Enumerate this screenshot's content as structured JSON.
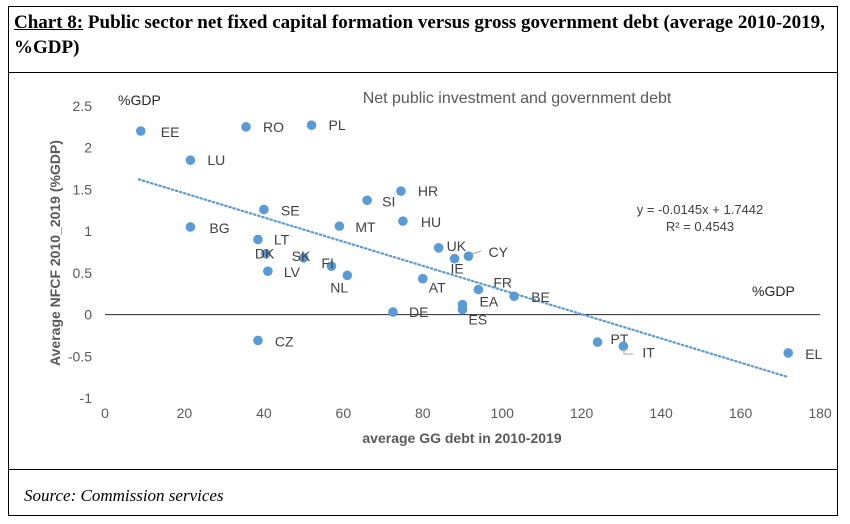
{
  "heading": {
    "label": "Chart 8:",
    "text": " Public sector net fixed capital formation versus gross government debt (average 2010-2019, %GDP)"
  },
  "source": "Source: Commission services",
  "chart_data": {
    "type": "scatter",
    "title": "Net public investment and government debt",
    "xlabel": "average GG debt in 2010-2019",
    "ylabel": "Average NFCF 2010_2019 (%GDP)",
    "y_unit_label": "%GDP",
    "x_unit_label": "%GDP",
    "xlim": [
      0,
      180
    ],
    "ylim": [
      -1,
      2.5
    ],
    "x_ticks": [
      "0",
      "20",
      "40",
      "60",
      "80",
      "100",
      "120",
      "140",
      "160",
      "180"
    ],
    "y_ticks": [
      "2.5",
      "2",
      "1.5",
      "1",
      "0.5",
      "0",
      "-0.5",
      "-1"
    ],
    "grid": false,
    "point_color": "#5b9bd5",
    "trendline": {
      "slope": -0.0145,
      "intercept": 1.7442,
      "x_range": [
        8.5,
        172
      ],
      "color": "#5b9bd5",
      "equation": "y = -0.0145x + 1.7442",
      "r2_text": "R² = 0.4543"
    },
    "points": [
      {
        "label": "EE",
        "x": 9,
        "y": 2.2
      },
      {
        "label": "RO",
        "x": 35.5,
        "y": 2.25
      },
      {
        "label": "PL",
        "x": 52,
        "y": 2.27
      },
      {
        "label": "LU",
        "x": 21.5,
        "y": 1.85
      },
      {
        "label": "HR",
        "x": 74.5,
        "y": 1.48
      },
      {
        "label": "SI",
        "x": 66,
        "y": 1.37
      },
      {
        "label": "SE",
        "x": 40,
        "y": 1.26
      },
      {
        "label": "HU",
        "x": 75,
        "y": 1.12
      },
      {
        "label": "MT",
        "x": 59,
        "y": 1.06
      },
      {
        "label": "BG",
        "x": 21.5,
        "y": 1.05
      },
      {
        "label": "LT",
        "x": 38.5,
        "y": 0.9
      },
      {
        "label": "UK",
        "x": 84,
        "y": 0.8
      },
      {
        "label": "CY",
        "x": 91.5,
        "y": 0.7
      },
      {
        "label": "DK",
        "x": 40.5,
        "y": 0.73
      },
      {
        "label": "SK",
        "x": 50,
        "y": 0.68
      },
      {
        "label": "IE",
        "x": 88,
        "y": 0.67
      },
      {
        "label": "FI",
        "x": 57,
        "y": 0.58
      },
      {
        "label": "LV",
        "x": 41,
        "y": 0.52
      },
      {
        "label": "NL",
        "x": 61,
        "y": 0.47
      },
      {
        "label": "AT",
        "x": 80,
        "y": 0.43
      },
      {
        "label": "FR",
        "x": 94,
        "y": 0.3
      },
      {
        "label": "BE",
        "x": 103,
        "y": 0.22
      },
      {
        "label": "EA",
        "x": 90,
        "y": 0.12
      },
      {
        "label": "DE",
        "x": 72.5,
        "y": 0.03
      },
      {
        "label": "ES",
        "x": 90,
        "y": 0.06
      },
      {
        "label": "CZ",
        "x": 38.5,
        "y": -0.31
      },
      {
        "label": "PT",
        "x": 124,
        "y": -0.33
      },
      {
        "label": "IT",
        "x": 130.5,
        "y": -0.38
      },
      {
        "label": "EL",
        "x": 172,
        "y": -0.46
      }
    ]
  }
}
